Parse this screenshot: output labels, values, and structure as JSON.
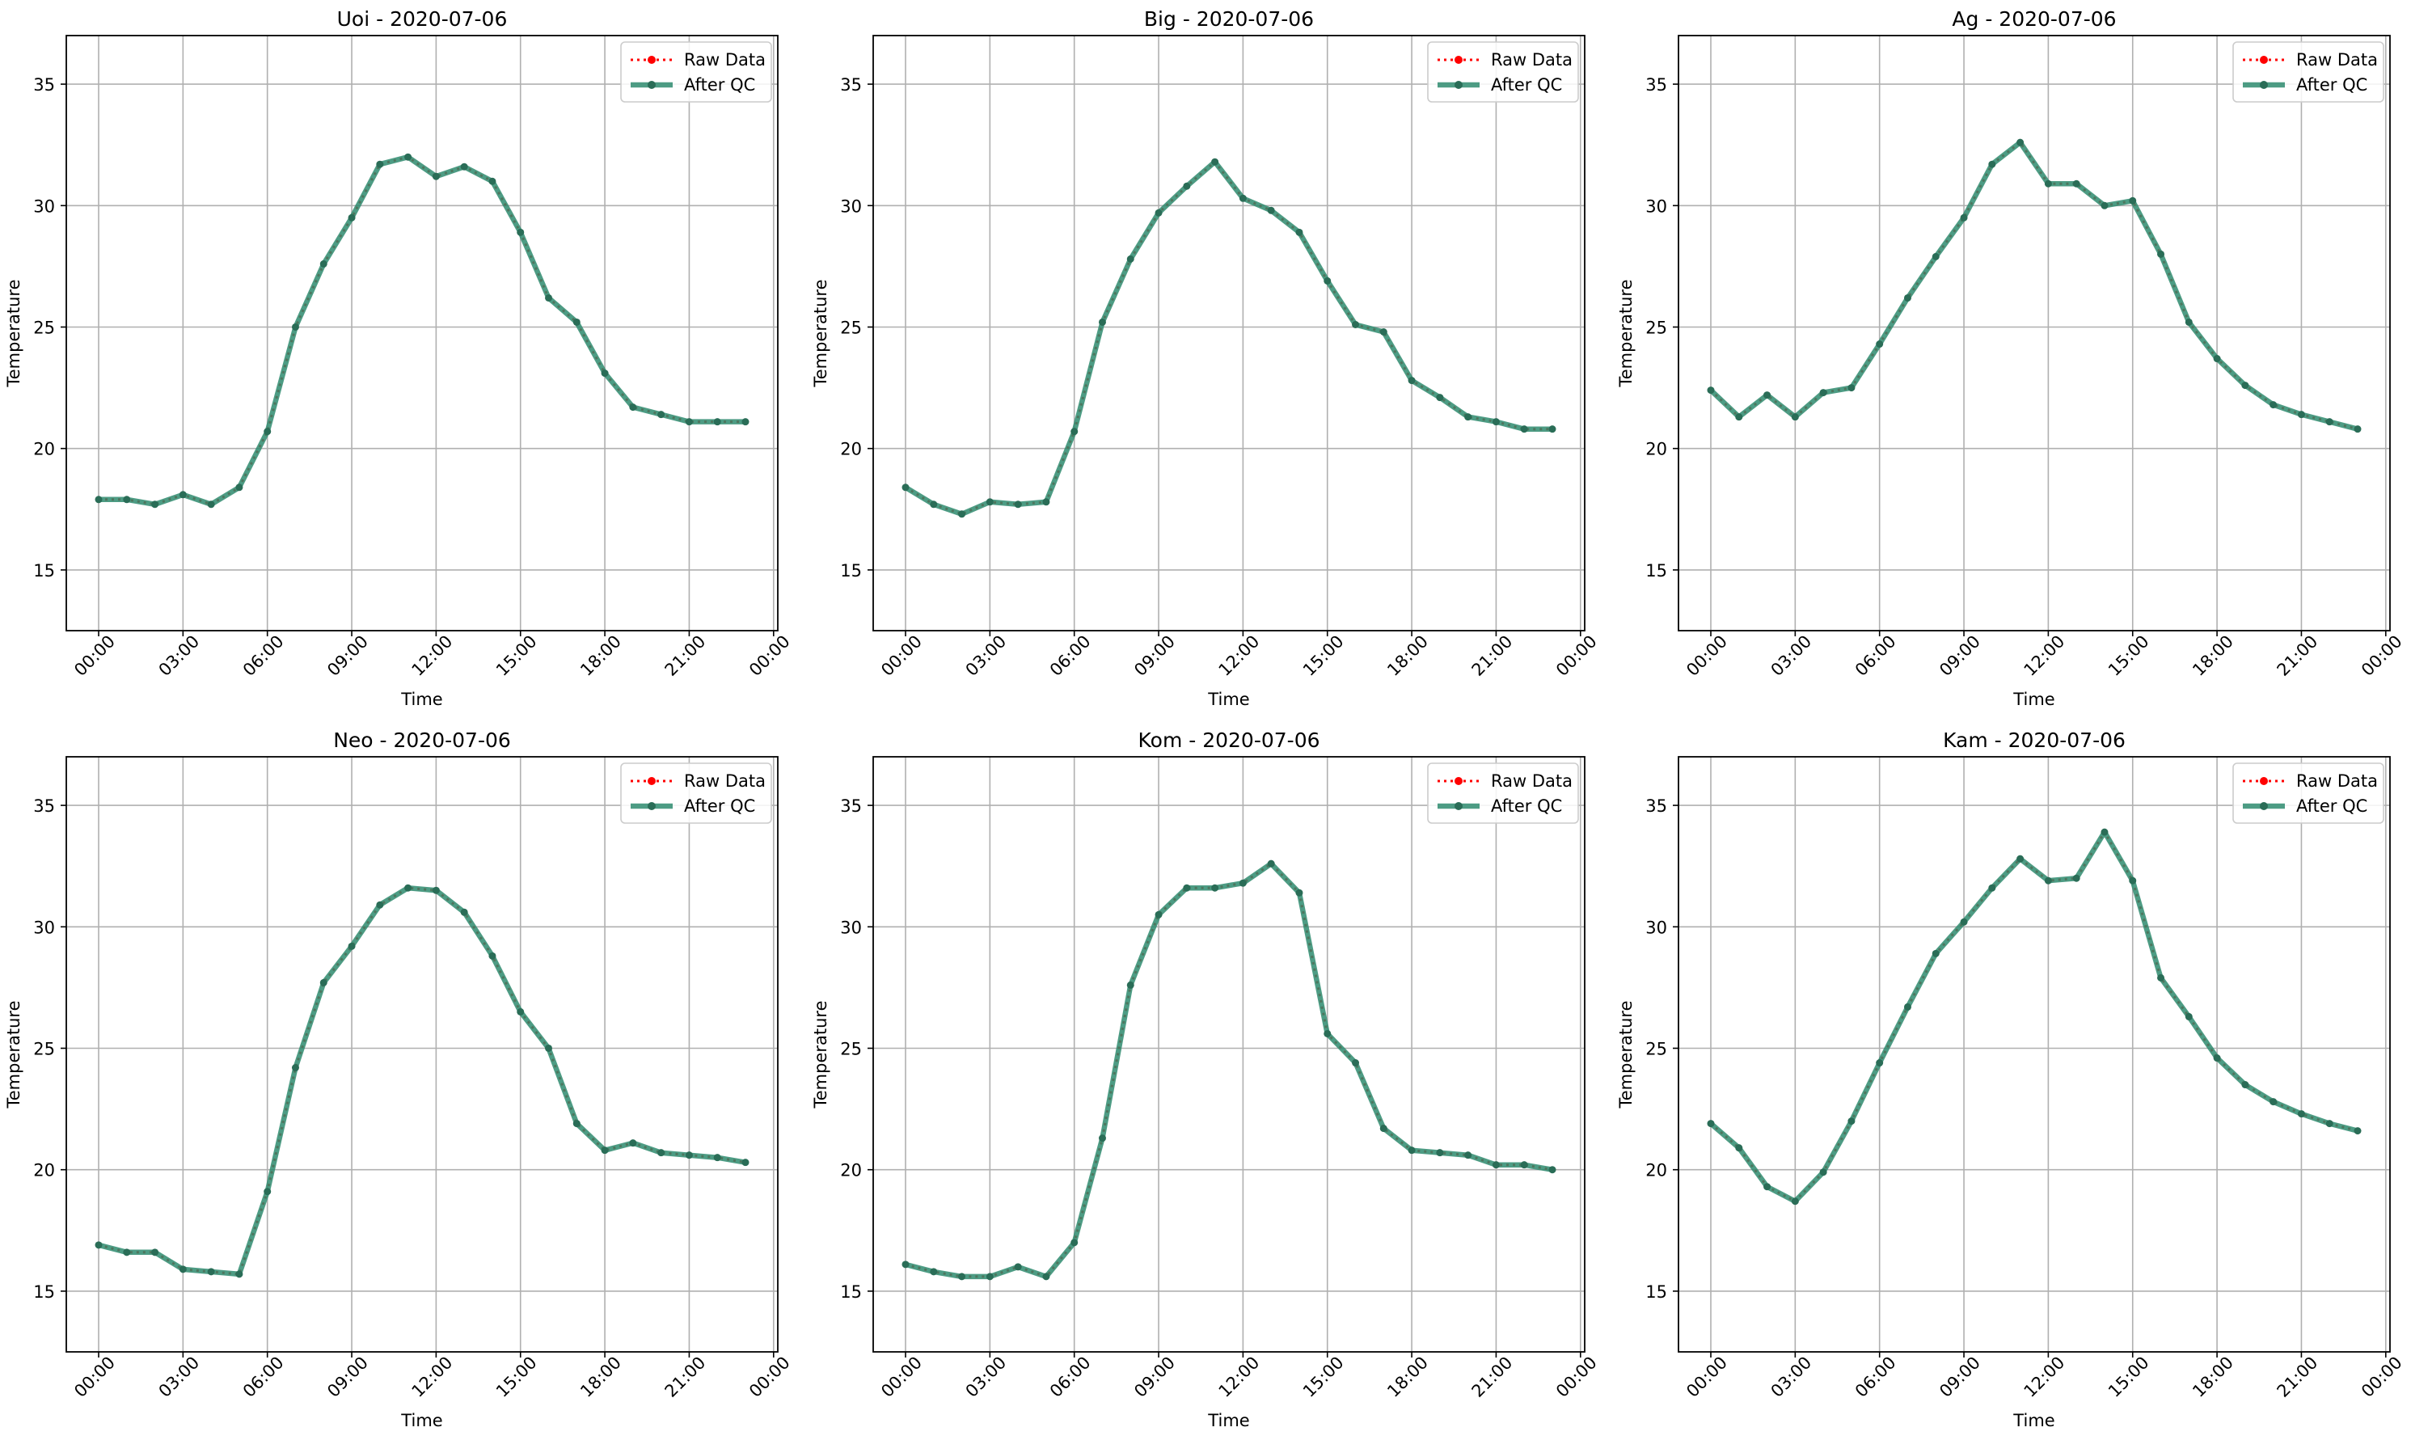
{
  "figure": {
    "legend_placement": "upper-right",
    "line_colors": {
      "raw": "#ff0000",
      "qc": "#2e8b6e"
    }
  },
  "chart_data": [
    {
      "type": "line",
      "title": "Uoi - 2020-07-06",
      "xlabel": "Time",
      "ylabel": "Temperature",
      "xlim": [
        "2020-07-06 00:00",
        "2020-07-07 00:00"
      ],
      "ylim": [
        12.5,
        37.0
      ],
      "x_ticks": [
        "00:00",
        "03:00",
        "06:00",
        "09:00",
        "12:00",
        "15:00",
        "18:00",
        "21:00",
        "00:00"
      ],
      "y_ticks": [
        15,
        20,
        25,
        30,
        35
      ],
      "grid": true,
      "legend": [
        "Raw Data",
        "After QC"
      ],
      "x": [
        "00:00",
        "01:00",
        "02:00",
        "03:00",
        "04:00",
        "05:00",
        "06:00",
        "07:00",
        "08:00",
        "09:00",
        "10:00",
        "11:00",
        "12:00",
        "13:00",
        "14:00",
        "15:00",
        "16:00",
        "17:00",
        "18:00",
        "19:00",
        "20:00",
        "21:00",
        "22:00",
        "23:00"
      ],
      "series": [
        {
          "name": "Raw Data",
          "values": [
            17.9,
            17.9,
            17.7,
            18.1,
            17.7,
            18.4,
            20.7,
            25.0,
            27.6,
            29.5,
            31.7,
            32.0,
            31.2,
            31.6,
            31.0,
            28.9,
            26.2,
            25.2,
            23.1,
            21.7,
            21.4,
            21.1,
            21.1,
            21.1
          ]
        },
        {
          "name": "After QC",
          "values": [
            17.9,
            17.9,
            17.7,
            18.1,
            17.7,
            18.4,
            20.7,
            25.0,
            27.6,
            29.5,
            31.7,
            32.0,
            31.2,
            31.6,
            31.0,
            28.9,
            26.2,
            25.2,
            23.1,
            21.7,
            21.4,
            21.1,
            21.1,
            21.1
          ]
        }
      ]
    },
    {
      "type": "line",
      "title": "Big - 2020-07-06",
      "xlabel": "Time",
      "ylabel": "Temperature",
      "xlim": [
        "2020-07-06 00:00",
        "2020-07-07 00:00"
      ],
      "ylim": [
        12.5,
        37.0
      ],
      "x_ticks": [
        "00:00",
        "03:00",
        "06:00",
        "09:00",
        "12:00",
        "15:00",
        "18:00",
        "21:00",
        "00:00"
      ],
      "y_ticks": [
        15,
        20,
        25,
        30,
        35
      ],
      "grid": true,
      "legend": [
        "Raw Data",
        "After QC"
      ],
      "x": [
        "00:00",
        "01:00",
        "02:00",
        "03:00",
        "04:00",
        "05:00",
        "06:00",
        "07:00",
        "08:00",
        "09:00",
        "10:00",
        "11:00",
        "12:00",
        "13:00",
        "14:00",
        "15:00",
        "16:00",
        "17:00",
        "18:00",
        "19:00",
        "20:00",
        "21:00",
        "22:00",
        "23:00"
      ],
      "series": [
        {
          "name": "Raw Data",
          "values": [
            18.4,
            17.7,
            17.3,
            17.8,
            17.7,
            17.8,
            20.7,
            25.2,
            27.8,
            29.7,
            30.8,
            31.8,
            30.3,
            29.8,
            28.9,
            26.9,
            25.1,
            24.8,
            22.8,
            22.1,
            21.3,
            21.1,
            20.8,
            20.8
          ]
        },
        {
          "name": "After QC",
          "values": [
            18.4,
            17.7,
            17.3,
            17.8,
            17.7,
            17.8,
            20.7,
            25.2,
            27.8,
            29.7,
            30.8,
            31.8,
            30.3,
            29.8,
            28.9,
            26.9,
            25.1,
            24.8,
            22.8,
            22.1,
            21.3,
            21.1,
            20.8,
            20.8
          ]
        }
      ]
    },
    {
      "type": "line",
      "title": "Ag - 2020-07-06",
      "xlabel": "Time",
      "ylabel": "Temperature",
      "xlim": [
        "2020-07-06 00:00",
        "2020-07-07 00:00"
      ],
      "ylim": [
        12.5,
        37.0
      ],
      "x_ticks": [
        "00:00",
        "03:00",
        "06:00",
        "09:00",
        "12:00",
        "15:00",
        "18:00",
        "21:00",
        "00:00"
      ],
      "y_ticks": [
        15,
        20,
        25,
        30,
        35
      ],
      "grid": true,
      "legend": [
        "Raw Data",
        "After QC"
      ],
      "x": [
        "00:00",
        "01:00",
        "02:00",
        "03:00",
        "04:00",
        "05:00",
        "06:00",
        "07:00",
        "08:00",
        "09:00",
        "10:00",
        "11:00",
        "12:00",
        "13:00",
        "14:00",
        "15:00",
        "16:00",
        "17:00",
        "18:00",
        "19:00",
        "20:00",
        "21:00",
        "22:00",
        "23:00"
      ],
      "series": [
        {
          "name": "Raw Data",
          "values": [
            22.4,
            21.3,
            22.2,
            21.3,
            22.3,
            22.5,
            24.3,
            26.2,
            27.9,
            29.5,
            31.7,
            32.6,
            30.9,
            30.9,
            30.0,
            30.2,
            28.0,
            25.2,
            23.7,
            22.6,
            21.8,
            21.4,
            21.1,
            20.8
          ]
        },
        {
          "name": "After QC",
          "values": [
            22.4,
            21.3,
            22.2,
            21.3,
            22.3,
            22.5,
            24.3,
            26.2,
            27.9,
            29.5,
            31.7,
            32.6,
            30.9,
            30.9,
            30.0,
            30.2,
            28.0,
            25.2,
            23.7,
            22.6,
            21.8,
            21.4,
            21.1,
            20.8
          ]
        }
      ]
    },
    {
      "type": "line",
      "title": "Neo - 2020-07-06",
      "xlabel": "Time",
      "ylabel": "Temperature",
      "xlim": [
        "2020-07-06 00:00",
        "2020-07-07 00:00"
      ],
      "ylim": [
        12.5,
        37.0
      ],
      "x_ticks": [
        "00:00",
        "03:00",
        "06:00",
        "09:00",
        "12:00",
        "15:00",
        "18:00",
        "21:00",
        "00:00"
      ],
      "y_ticks": [
        15,
        20,
        25,
        30,
        35
      ],
      "grid": true,
      "legend": [
        "Raw Data",
        "After QC"
      ],
      "x": [
        "00:00",
        "01:00",
        "02:00",
        "03:00",
        "04:00",
        "05:00",
        "06:00",
        "07:00",
        "08:00",
        "09:00",
        "10:00",
        "11:00",
        "12:00",
        "13:00",
        "14:00",
        "15:00",
        "16:00",
        "17:00",
        "18:00",
        "19:00",
        "20:00",
        "21:00",
        "22:00",
        "23:00"
      ],
      "series": [
        {
          "name": "Raw Data",
          "values": [
            16.9,
            16.6,
            16.6,
            15.9,
            15.8,
            15.7,
            19.1,
            24.2,
            27.7,
            29.2,
            30.9,
            31.6,
            31.5,
            30.6,
            28.8,
            26.5,
            25.0,
            21.9,
            20.8,
            21.1,
            20.7,
            20.6,
            20.5,
            20.3
          ]
        },
        {
          "name": "After QC",
          "values": [
            16.9,
            16.6,
            16.6,
            15.9,
            15.8,
            15.7,
            19.1,
            24.2,
            27.7,
            29.2,
            30.9,
            31.6,
            31.5,
            30.6,
            28.8,
            26.5,
            25.0,
            21.9,
            20.8,
            21.1,
            20.7,
            20.6,
            20.5,
            20.3
          ]
        }
      ]
    },
    {
      "type": "line",
      "title": "Kom - 2020-07-06",
      "xlabel": "Time",
      "ylabel": "Temperature",
      "xlim": [
        "2020-07-06 00:00",
        "2020-07-07 00:00"
      ],
      "ylim": [
        12.5,
        37.0
      ],
      "x_ticks": [
        "00:00",
        "03:00",
        "06:00",
        "09:00",
        "12:00",
        "15:00",
        "18:00",
        "21:00",
        "00:00"
      ],
      "y_ticks": [
        15,
        20,
        25,
        30,
        35
      ],
      "grid": true,
      "legend": [
        "Raw Data",
        "After QC"
      ],
      "x": [
        "00:00",
        "01:00",
        "02:00",
        "03:00",
        "04:00",
        "05:00",
        "06:00",
        "07:00",
        "08:00",
        "09:00",
        "10:00",
        "11:00",
        "12:00",
        "13:00",
        "14:00",
        "15:00",
        "16:00",
        "17:00",
        "18:00",
        "19:00",
        "20:00",
        "21:00",
        "22:00",
        "23:00"
      ],
      "series": [
        {
          "name": "Raw Data",
          "values": [
            16.1,
            15.8,
            15.6,
            15.6,
            16.0,
            15.6,
            17.0,
            21.3,
            27.6,
            30.5,
            31.6,
            31.6,
            31.8,
            32.6,
            31.4,
            25.6,
            24.4,
            21.7,
            20.8,
            20.7,
            20.6,
            20.2,
            20.2,
            20.0
          ]
        },
        {
          "name": "After QC",
          "values": [
            16.1,
            15.8,
            15.6,
            15.6,
            16.0,
            15.6,
            17.0,
            21.3,
            27.6,
            30.5,
            31.6,
            31.6,
            31.8,
            32.6,
            31.4,
            25.6,
            24.4,
            21.7,
            20.8,
            20.7,
            20.6,
            20.2,
            20.2,
            20.0
          ]
        }
      ]
    },
    {
      "type": "line",
      "title": "Kam - 2020-07-06",
      "xlabel": "Time",
      "ylabel": "Temperature",
      "xlim": [
        "2020-07-06 00:00",
        "2020-07-07 00:00"
      ],
      "ylim": [
        12.5,
        37.0
      ],
      "x_ticks": [
        "00:00",
        "03:00",
        "06:00",
        "09:00",
        "12:00",
        "15:00",
        "18:00",
        "21:00",
        "00:00"
      ],
      "y_ticks": [
        15,
        20,
        25,
        30,
        35
      ],
      "grid": true,
      "legend": [
        "Raw Data",
        "After QC"
      ],
      "x": [
        "00:00",
        "01:00",
        "02:00",
        "03:00",
        "04:00",
        "05:00",
        "06:00",
        "07:00",
        "08:00",
        "09:00",
        "10:00",
        "11:00",
        "12:00",
        "13:00",
        "14:00",
        "15:00",
        "16:00",
        "17:00",
        "18:00",
        "19:00",
        "20:00",
        "21:00",
        "22:00",
        "23:00"
      ],
      "series": [
        {
          "name": "Raw Data",
          "values": [
            21.9,
            20.9,
            19.3,
            18.7,
            19.9,
            22.0,
            24.4,
            26.7,
            28.9,
            30.2,
            31.6,
            32.8,
            31.9,
            32.0,
            33.9,
            31.9,
            27.9,
            26.3,
            24.6,
            23.5,
            22.8,
            22.3,
            21.9,
            21.6
          ]
        },
        {
          "name": "After QC",
          "values": [
            21.9,
            20.9,
            19.3,
            18.7,
            19.9,
            22.0,
            24.4,
            26.7,
            28.9,
            30.2,
            31.6,
            32.8,
            31.9,
            32.0,
            33.9,
            31.9,
            27.9,
            26.3,
            24.6,
            23.5,
            22.8,
            22.3,
            21.9,
            21.6
          ]
        }
      ]
    }
  ]
}
